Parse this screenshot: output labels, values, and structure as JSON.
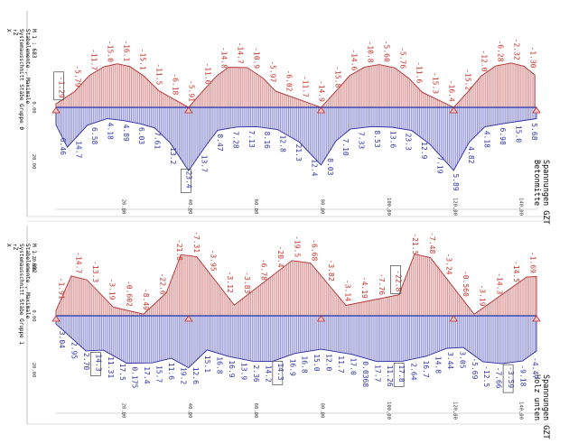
{
  "chart_data": [
    {
      "type": "area",
      "title": "Spannungen GZT",
      "subtitle": "Betonmitte",
      "side_text": [
        "X",
        "↑Z",
        "Systemausschnitt Stäbe Gruppe 0",
        "Stabelemente , Maximale",
        "M 1 : 683"
      ],
      "xlim": [
        0,
        145
      ],
      "ylim": [
        -20,
        20
      ],
      "x_ticks": [
        20,
        40,
        60,
        80,
        100,
        120,
        140
      ],
      "y_ticks": [
        0,
        20
      ],
      "supports_x": [
        0,
        40,
        80,
        120,
        160
      ],
      "series": [
        {
          "name": "top",
          "color": "#d07070",
          "values": [
            [
              0,
              -1.29
            ],
            [
              5.6,
              -5.79
            ],
            [
              10,
              -11.7
            ],
            [
              14.4,
              -15.0
            ],
            [
              18.5,
              -16.1
            ],
            [
              22.3,
              -15.1
            ],
            [
              26.6,
              -11.5
            ],
            [
              31,
              -6.18
            ],
            [
              40,
              0
            ],
            [
              44.2,
              -5.91
            ],
            [
              48.5,
              -11.6
            ],
            [
              52,
              -14.8
            ],
            [
              57.7,
              -14.7
            ],
            [
              62.4,
              -10.9
            ],
            [
              66.3,
              -5.97
            ],
            [
              80,
              0
            ],
            [
              84.5,
              -6.02
            ],
            [
              88.6,
              -11.7
            ],
            [
              93.1,
              -14.9
            ],
            [
              97.6,
              -15.8
            ],
            [
              102.2,
              -14.6
            ],
            [
              106.4,
              -10.8
            ],
            [
              110.5,
              -5.6
            ],
            [
              120,
              0
            ],
            [
              124.3,
              -5.76
            ],
            [
              128.3,
              -11.6
            ],
            [
              132.7,
              -15.3
            ],
            [
              137.4,
              -16.4
            ],
            [
              141.2,
              -15.2
            ],
            [
              144.5,
              -12.0
            ]
          ]
        },
        {
          "name": "bottom",
          "color": "#6b6bc8",
          "values": [
            [
              0,
              6.46
            ],
            [
              3.4,
              14.7
            ],
            [
              9.5,
              6.58
            ],
            [
              15.5,
              4.18
            ],
            [
              20.5,
              4.89
            ],
            [
              25.3,
              6.03
            ],
            [
              29.8,
              7.61
            ],
            [
              34.5,
              13.2
            ],
            [
              40,
              23.4
            ],
            [
              45.5,
              13.7
            ],
            [
              48.8,
              8.47
            ],
            [
              54.5,
              7.28
            ],
            [
              60.6,
              7.13
            ],
            [
              66.8,
              8.16
            ],
            [
              73.4,
              12.8
            ],
            [
              80,
              21.3
            ],
            [
              84.5,
              12.4
            ],
            [
              88.8,
              8.03
            ],
            [
              95.4,
              7.1
            ],
            [
              101.4,
              7.33
            ],
            [
              107.3,
              8.53
            ],
            [
              112.8,
              13.6
            ],
            [
              120,
              23.3
            ],
            [
              124.7,
              12.9
            ],
            [
              129.4,
              7.19
            ],
            [
              135.5,
              5.89
            ],
            [
              141.3,
              4.82
            ],
            [
              145,
              4.18
            ]
          ]
        }
      ],
      "labels_top": [
        "-1.29",
        "-5.79",
        "-11.7",
        "-15.0",
        "-16.1",
        "-15.1",
        "-11.5",
        "-6.18",
        "-5.91",
        "-11.6",
        "-14.8",
        "-14.7",
        "-10.9",
        "-5.97",
        "-6.02",
        "-11.7",
        "-14.9",
        "-15.8",
        "-14.6",
        "-10.8",
        "-5.60",
        "-5.76",
        "-11.6",
        "-15.3",
        "-16.4",
        "-15.2",
        "-12.0",
        "-6.28",
        "-2.32",
        "-1.30"
      ],
      "labels_bottom": [
        "6.46",
        "14.7",
        "6.58",
        "4.18",
        "4.89",
        "6.03",
        "7.61",
        "13.2",
        "23.4",
        "13.7",
        "8.47",
        "7.28",
        "7.13",
        "8.16",
        "12.8",
        "21.3",
        "12.4",
        "8.03",
        "7.10",
        "7.33",
        "8.53",
        "13.6",
        "23.3",
        "12.9",
        "7.19",
        "5.89",
        "4.82",
        "4.18",
        "6.98",
        "15.0",
        "5.68"
      ],
      "boxed_labels": [
        "-1.29",
        "23.4"
      ]
    },
    {
      "type": "area",
      "title": "Spannungen GZT",
      "subtitle": "Holz unten",
      "side_text": [
        "X",
        "↑Z",
        "Systemausschnitt Stäbe Gruppe 1",
        "Stabelemente , Maximale",
        "M 1 : 692"
      ],
      "xlim": [
        0,
        145
      ],
      "ylim": [
        -20,
        20
      ],
      "x_ticks": [
        20,
        40,
        60,
        80,
        100,
        120,
        140
      ],
      "y_ticks": [
        -20,
        0,
        20
      ],
      "supports_x": [
        0,
        40,
        80,
        120,
        160
      ],
      "series": [
        {
          "name": "top",
          "color": "#d07070",
          "values": [
            [
              0,
              -1.91
            ],
            [
              4.6,
              -14.7
            ],
            [
              9.3,
              -13.3
            ],
            [
              17.3,
              -3.19
            ],
            [
              26.4,
              -0.602
            ],
            [
              33.3,
              -8.49
            ],
            [
              37.7,
              -22.6
            ],
            [
              42.5,
              -21.8
            ],
            [
              53.8,
              -3.95
            ],
            [
              71.2,
              -20.4
            ],
            [
              76.8,
              -19.5
            ],
            [
              87.5,
              -3.82
            ],
            [
              103.5,
              -7.76
            ],
            [
              108.2,
              -22.8
            ],
            [
              113,
              -21.5
            ],
            [
              126.2,
              -0.56
            ],
            [
              142,
              -14.3
            ],
            [
              145,
              -14.5
            ]
          ]
        },
        {
          "name": "bottom",
          "color": "#6b6bc8",
          "values": [
            [
              0,
              3.04
            ],
            [
              9,
              12.95
            ],
            [
              14.3,
              12.7
            ],
            [
              21.3,
              17.5
            ],
            [
              29,
              17.4
            ],
            [
              34.8,
              15.7
            ],
            [
              40,
              19.2
            ],
            [
              45.6,
              12.6
            ],
            [
              52.3,
              15.1
            ],
            [
              59.5,
              16.8
            ],
            [
              65.2,
              16.9
            ],
            [
              72.1,
              13.9
            ],
            [
              80,
              12.36
            ],
            [
              89.1,
              14.2
            ],
            [
              96.8,
              16.9
            ],
            [
              104.5,
              16.8
            ],
            [
              111.6,
              15.0
            ],
            [
              118,
              12.0
            ],
            [
              122.9,
              11.7
            ],
            [
              128.8,
              17.0
            ],
            [
              134.5,
              17.7
            ],
            [
              140.8,
              16.7
            ],
            [
              145,
              13.05
            ]
          ]
        }
      ],
      "labels_top": [
        "-1.91",
        "-14.7",
        "-13.3",
        "-3.19",
        "-0.602",
        "-8.49",
        "-22.6",
        "-21.8",
        "-7.31",
        "-3.95",
        "-3.12",
        "-3.83",
        "-6.78",
        "-20.4",
        "-19.5",
        "-6.68",
        "-3.82",
        "-3.14",
        "-4.19",
        "-7.76",
        "-22.8",
        "-21.5",
        "-7.48",
        "-3.24",
        "-0.560",
        "-3.19",
        "-14.3",
        "-14.5",
        "-1.69"
      ],
      "labels_bottom": [
        "3.04",
        "2.95",
        "2.70",
        "14.3",
        "11.31",
        "17.5",
        "0.175",
        "17.4",
        "15.7",
        "11.6",
        "19.2",
        "12.6",
        "15.1",
        "16.8",
        "16.9",
        "13.9",
        "2.36",
        "14.2",
        "14.3",
        "16.9",
        "16.8",
        "15.0",
        "12.0",
        "11.7",
        "17.0",
        "0.0368",
        "17.7",
        "11.26",
        "17.8",
        "2.64",
        "16.7",
        "14.8",
        "3.44",
        "3.05",
        "-5.69",
        "-12.5",
        "-7.66",
        "-3.59",
        "-9.18",
        "-4.47"
      ],
      "boxed_labels": [
        "-22.8",
        "-3.59",
        "14.3",
        "17.8"
      ]
    }
  ]
}
